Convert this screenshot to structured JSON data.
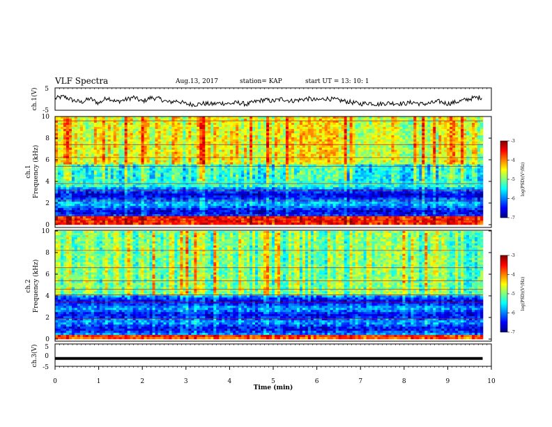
{
  "header": {
    "title": "VLF Spectra",
    "date": "Aug.13, 2017",
    "station": "station= KAP",
    "start": "start  UT =    13: 10: 1"
  },
  "chart_data": [
    {
      "type": "line",
      "panel": "ch1-waveform",
      "ylabel": "ch.1(V)",
      "ylim": [
        -5,
        5
      ],
      "yticks": [
        "5",
        "-5"
      ],
      "xlim": [
        0,
        10
      ],
      "series": [
        {
          "color": "#000000",
          "x": [
            0.0,
            0.2,
            0.4,
            0.6,
            0.8,
            1.0,
            1.2,
            1.4,
            1.6,
            1.8,
            2.0,
            2.2,
            2.4,
            2.6,
            2.8,
            3.0,
            3.2,
            3.4,
            3.6,
            3.8,
            4.0,
            4.2,
            4.4,
            4.6,
            4.8,
            5.0,
            5.2,
            5.4,
            5.6,
            5.8,
            6.0,
            6.2,
            6.4,
            6.6,
            6.8,
            7.0,
            7.2,
            7.4,
            7.6,
            7.8,
            8.0,
            8.2,
            8.4,
            8.6,
            8.8,
            9.0,
            9.2,
            9.4,
            9.6,
            9.8
          ],
          "y": [
            0.3,
            1.2,
            -0.5,
            -1.5,
            0.2,
            -2.0,
            0.8,
            -1.3,
            -0.4,
            0.9,
            -1.2,
            0.7,
            0.1,
            -1.6,
            -0.8,
            -2.3,
            -2.6,
            -2.1,
            -2.4,
            -1.9,
            -2.2,
            -1.7,
            -2.5,
            -1.2,
            -0.3,
            -1.0,
            0.1,
            -0.9,
            -0.4,
            0.2,
            -0.6,
            0.3,
            -0.2,
            -0.9,
            -1.6,
            -2.3,
            -1.8,
            -2.5,
            -1.9,
            -2.0,
            -2.2,
            -1.5,
            -2.4,
            -2.0,
            -1.1,
            -2.2,
            -1.4,
            -0.4,
            0.6,
            0.8
          ]
        }
      ]
    },
    {
      "type": "heatmap",
      "panel": "ch1-spectrogram",
      "ylabel": "ch.1",
      "ylabel2": "Frequency (kHz)",
      "ylim": [
        0,
        10
      ],
      "yticks": [
        "0",
        "2",
        "4",
        "6",
        "8",
        "10"
      ],
      "xlim": [
        0,
        10
      ],
      "colorbar": {
        "ticks": [
          "-3",
          "-4",
          "-5",
          "-6",
          "-7"
        ],
        "range": [
          -7,
          -3
        ],
        "label": "log(PSD)(V²/Hz)"
      },
      "typical_levels": [
        {
          "band": "0-0.8 kHz",
          "level": -3.6
        },
        {
          "band": "0.8-3.5 kHz",
          "level": -6.2
        },
        {
          "band": "3.5-5.5 kHz",
          "level": -5.4
        },
        {
          "band": "5.5-10 kHz",
          "level": -4.6
        }
      ]
    },
    {
      "type": "heatmap",
      "panel": "ch2-spectrogram",
      "ylabel": "ch.2",
      "ylabel2": "Frequency (kHz)",
      "ylim": [
        0,
        10
      ],
      "yticks": [
        "0",
        "2",
        "4",
        "6",
        "8",
        "10"
      ],
      "xlim": [
        0,
        10
      ],
      "colorbar": {
        "ticks": [
          "-3",
          "-4",
          "-5",
          "-6",
          "-7"
        ],
        "range": [
          -7,
          -3
        ],
        "label": "log(PSD)(V²/Hz)"
      },
      "typical_levels": [
        {
          "band": "0-0.3 kHz",
          "level": -3.8
        },
        {
          "band": "0.3-4 kHz",
          "level": -6.2
        },
        {
          "band": "4-10 kHz",
          "level": -5.0
        }
      ]
    },
    {
      "type": "line",
      "panel": "ch3-waveform",
      "ylabel": "ch.3(V)",
      "ylim": [
        -5,
        5
      ],
      "yticks": [
        "5",
        "0",
        "-5"
      ],
      "xlim": [
        0,
        10
      ],
      "xlabel": "Time  (min)",
      "xticks": [
        "0",
        "1",
        "2",
        "3",
        "4",
        "5",
        "6",
        "7",
        "8",
        "9",
        "10"
      ],
      "series": [
        {
          "color": "#000000",
          "x": [
            0,
            9.8
          ],
          "y": [
            -1.6,
            -1.6
          ]
        }
      ]
    }
  ],
  "colors": {
    "jet_low": "#00008f",
    "jet_mid": "#7fff7f",
    "jet_high": "#800000"
  }
}
